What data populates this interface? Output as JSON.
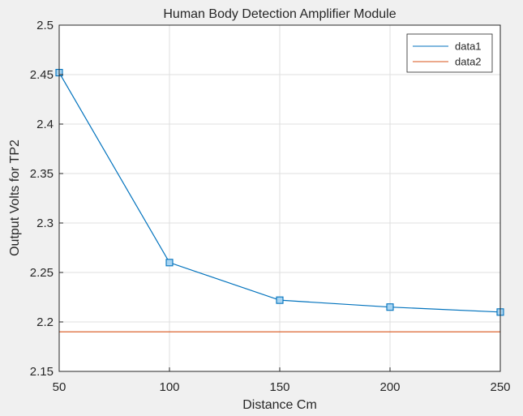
{
  "chart_data": {
    "type": "line",
    "title": "Human Body Detection Amplifier Module",
    "xlabel": "Distance Cm",
    "ylabel": "Output Volts for TP2",
    "xlim": [
      50,
      250
    ],
    "ylim": [
      2.15,
      2.5
    ],
    "xticks": [
      50,
      100,
      150,
      200,
      250
    ],
    "yticks": [
      2.15,
      2.2,
      2.25,
      2.3,
      2.35,
      2.4,
      2.45,
      2.5
    ],
    "xtick_labels": [
      "50",
      "100",
      "150",
      "200",
      "250"
    ],
    "ytick_labels": [
      "2.15",
      "2.2",
      "2.25",
      "2.3",
      "2.35",
      "2.4",
      "2.45",
      "2.5"
    ],
    "grid": true,
    "legend_position": "top-right",
    "series": [
      {
        "name": "data1",
        "color": "#0072bd",
        "marker": "square",
        "x": [
          50,
          100,
          150,
          200,
          250
        ],
        "y": [
          2.452,
          2.26,
          2.222,
          2.215,
          2.21
        ]
      },
      {
        "name": "data2",
        "color": "#d95319",
        "marker": "none",
        "x": [
          50,
          250
        ],
        "y": [
          2.19,
          2.19
        ]
      }
    ]
  }
}
